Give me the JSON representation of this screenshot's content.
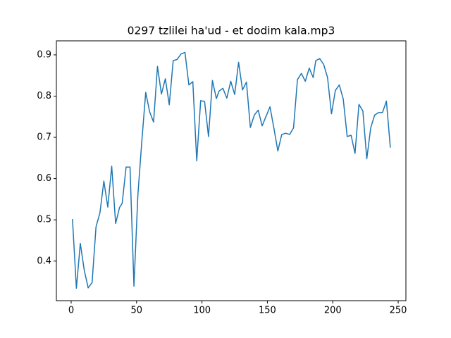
{
  "chart_data": {
    "type": "line",
    "title": "0297 tzlilei ha'ud - et dodim kala.mp3",
    "x": [
      1,
      4,
      7,
      10,
      13,
      16,
      19,
      22,
      25,
      28,
      31,
      34,
      37,
      39,
      42,
      45,
      48,
      51,
      54,
      57,
      60,
      63,
      66,
      69,
      72,
      75,
      78,
      81,
      84,
      87,
      90,
      93,
      96,
      99,
      102,
      105,
      108,
      111,
      113,
      116,
      119,
      122,
      125,
      128,
      131,
      134,
      137,
      140,
      143,
      146,
      149,
      152,
      155,
      158,
      161,
      164,
      167,
      170,
      173,
      176,
      179,
      182,
      185,
      187,
      190,
      193,
      196,
      199,
      202,
      205,
      208,
      211,
      214,
      217,
      220,
      223,
      226,
      229,
      232,
      235,
      238,
      241,
      244
    ],
    "series": [
      {
        "color": "#1f77b4",
        "values": [
          0.502,
          0.334,
          0.443,
          0.378,
          0.335,
          0.348,
          0.483,
          0.517,
          0.594,
          0.531,
          0.63,
          0.491,
          0.53,
          0.54,
          0.628,
          0.628,
          0.339,
          0.56,
          0.69,
          0.809,
          0.762,
          0.737,
          0.872,
          0.805,
          0.842,
          0.779,
          0.886,
          0.889,
          0.902,
          0.906,
          0.827,
          0.835,
          0.643,
          0.789,
          0.787,
          0.702,
          0.838,
          0.794,
          0.812,
          0.819,
          0.795,
          0.836,
          0.804,
          0.882,
          0.815,
          0.834,
          0.724,
          0.754,
          0.766,
          0.728,
          0.751,
          0.774,
          0.722,
          0.667,
          0.707,
          0.71,
          0.707,
          0.723,
          0.84,
          0.855,
          0.836,
          0.868,
          0.845,
          0.886,
          0.891,
          0.877,
          0.845,
          0.757,
          0.814,
          0.827,
          0.793,
          0.702,
          0.705,
          0.661,
          0.78,
          0.764,
          0.648,
          0.723,
          0.754,
          0.76,
          0.76,
          0.788,
          0.675
        ]
      }
    ],
    "xlim": [
      -11.3,
      255.9
    ],
    "ylim": [
      0.304,
      0.934
    ],
    "xticks": [
      0,
      50,
      100,
      150,
      200,
      250
    ],
    "yticks": [
      0.4,
      0.5,
      0.6,
      0.7,
      0.8,
      0.9
    ]
  }
}
